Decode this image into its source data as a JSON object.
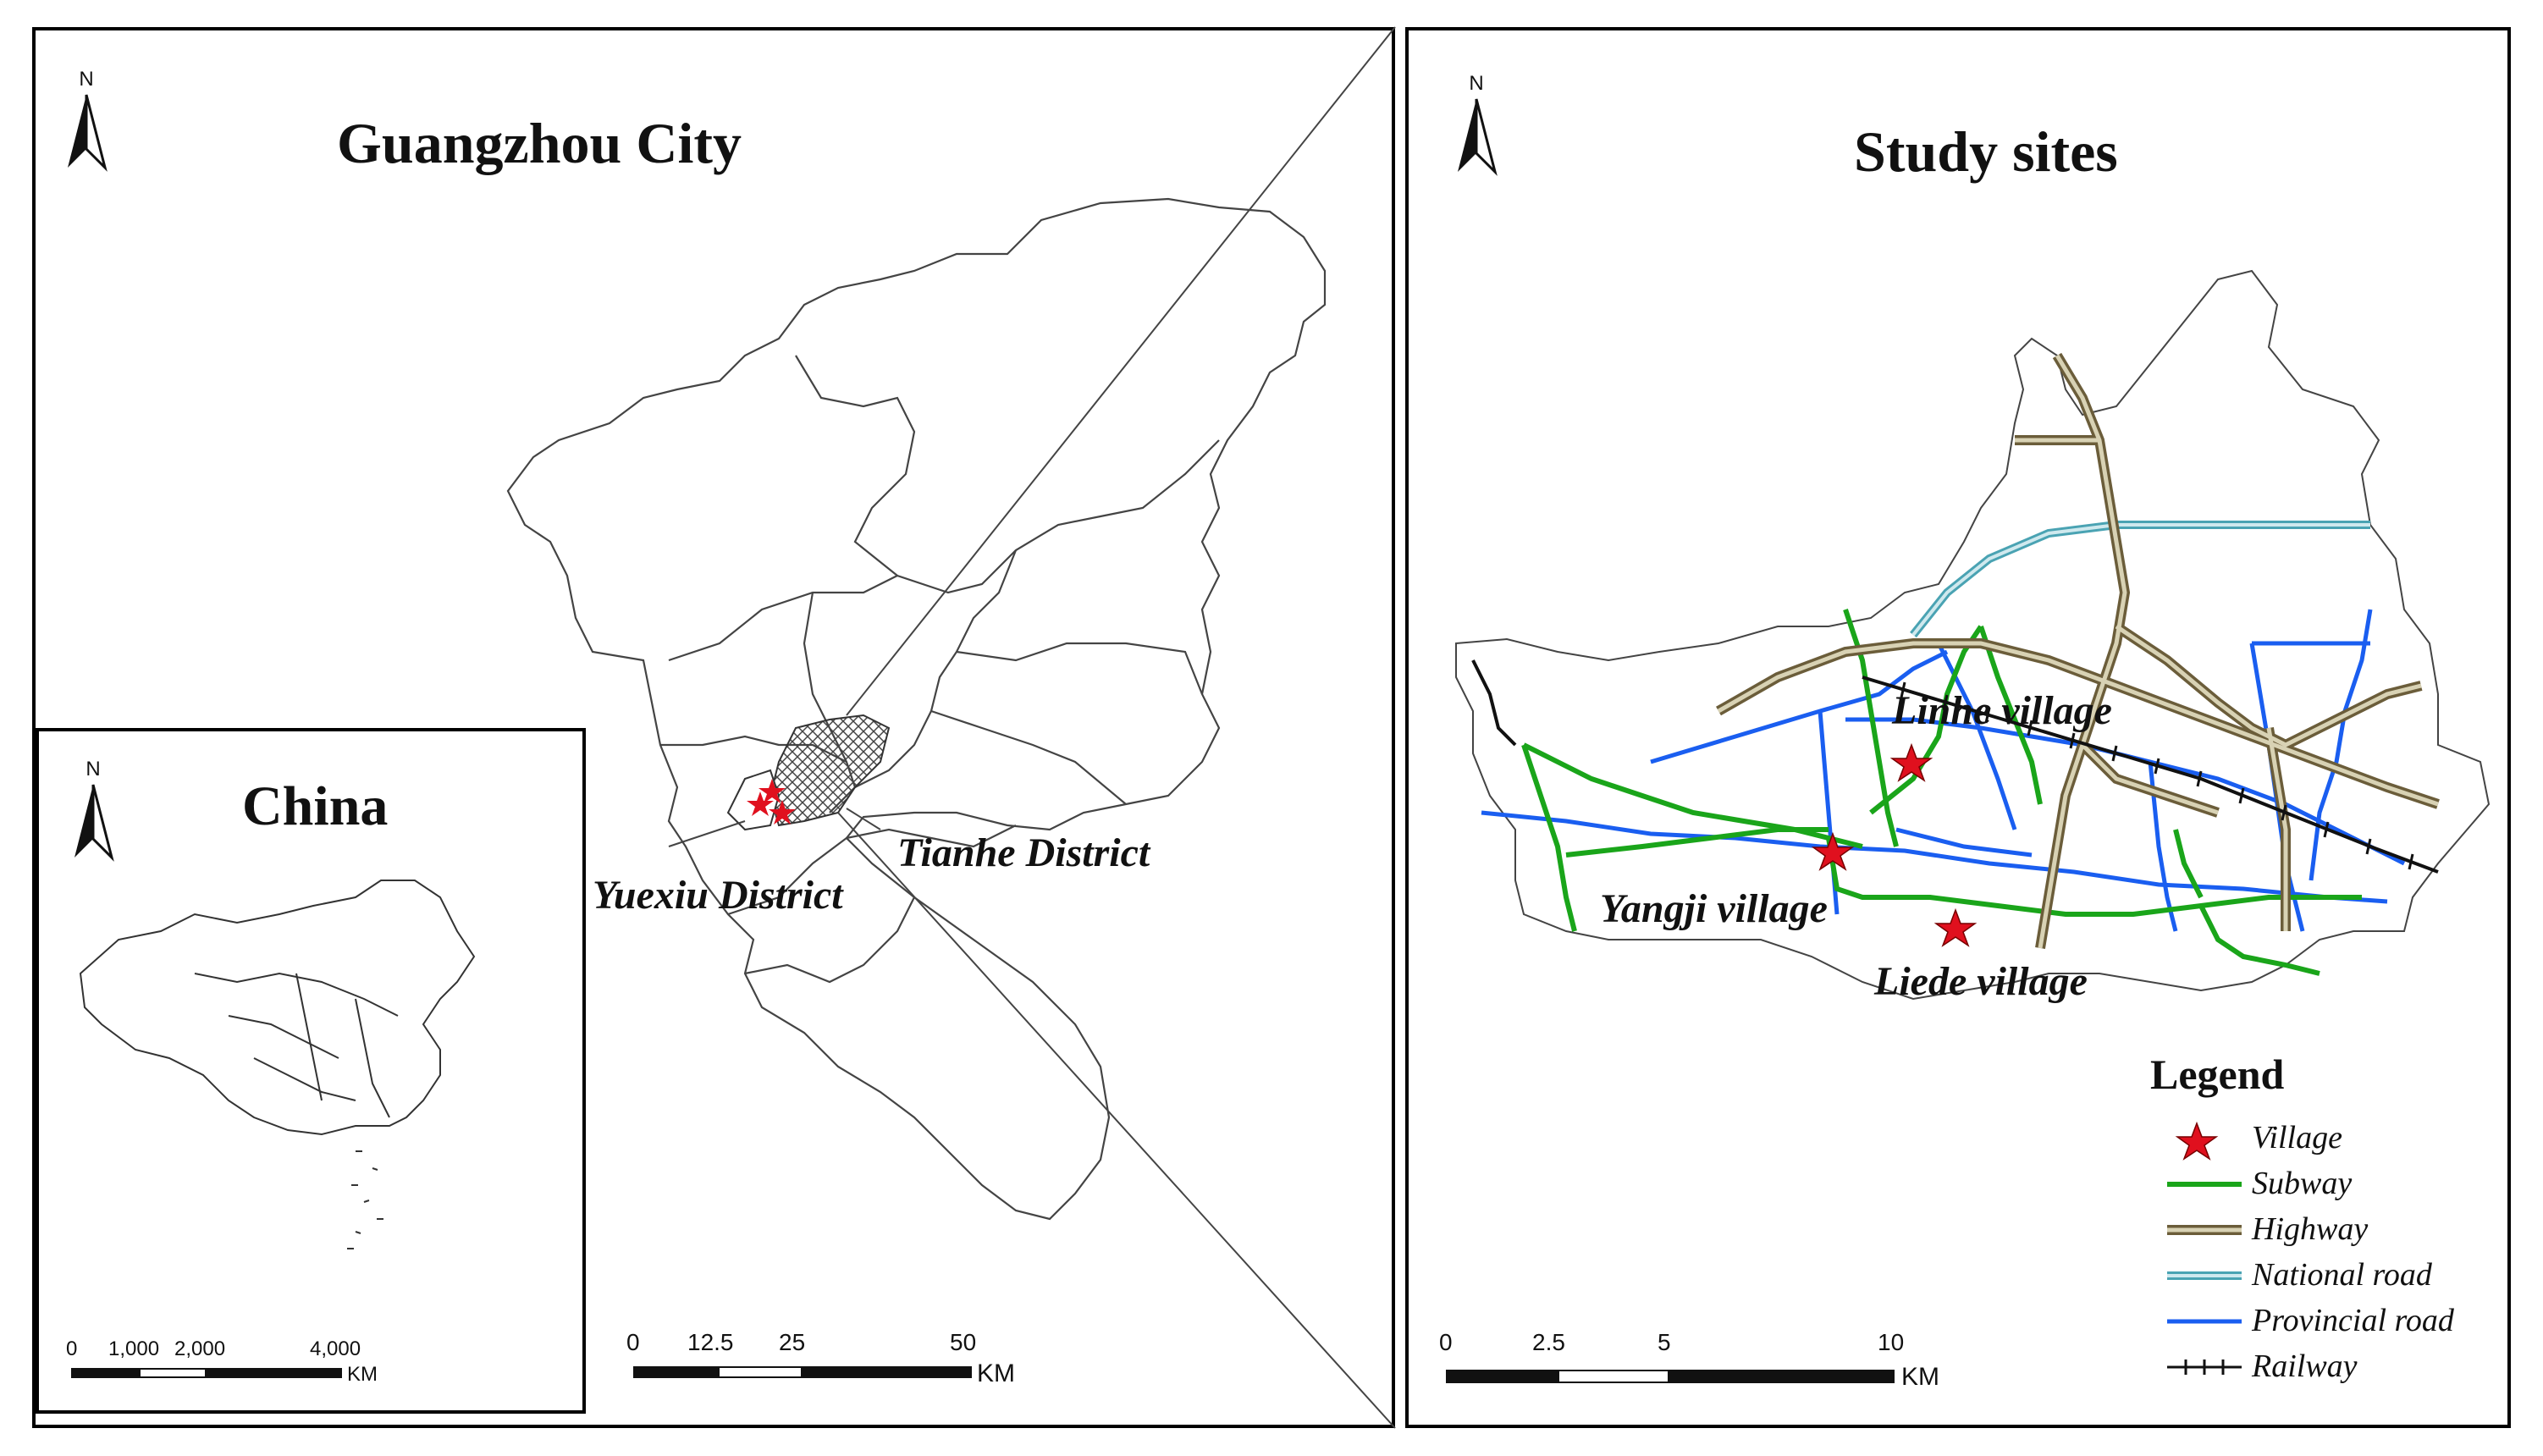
{
  "guangzhou_panel": {
    "title": "Guangzhou City",
    "north_label": "N",
    "district_labels": [
      "Yuexiu District",
      "Tianhe District"
    ],
    "scale": {
      "ticks": [
        "0",
        "12.5",
        "25",
        "50"
      ],
      "unit": "KM"
    }
  },
  "china_inset": {
    "title": "China",
    "north_label": "N",
    "scale": {
      "ticks": [
        "0",
        "1,000",
        "2,000",
        "4,000"
      ],
      "unit": "KM"
    }
  },
  "study_panel": {
    "title": "Study sites",
    "north_label": "N",
    "village_labels": [
      "Linhe village",
      "Yangji village",
      "Liede village"
    ],
    "scale": {
      "ticks": [
        "0",
        "2.5",
        "5",
        "10"
      ],
      "unit": "KM"
    }
  },
  "legend": {
    "title": "Legend",
    "items": [
      {
        "label": "Village",
        "symbol": "star-icon",
        "color": "#e0101e"
      },
      {
        "label": "Subway",
        "symbol": "line",
        "color": "#1aa51a"
      },
      {
        "label": "Highway",
        "symbol": "double-line",
        "color": "#6b5d3a"
      },
      {
        "label": "National road",
        "symbol": "double-line",
        "color": "#4aa3b3"
      },
      {
        "label": "Provincial road",
        "symbol": "line",
        "color": "#1a5ef0"
      },
      {
        "label": "Railway",
        "symbol": "railway",
        "color": "#111111"
      }
    ]
  },
  "colors": {
    "subway": "#1aa51a",
    "highway": "#6b5d3a",
    "highway_fill": "#d8d2b4",
    "national_road": "#4aa3b3",
    "provincial_road": "#1a5ef0",
    "village_star": "#e0101e",
    "boundary": "#333333"
  }
}
